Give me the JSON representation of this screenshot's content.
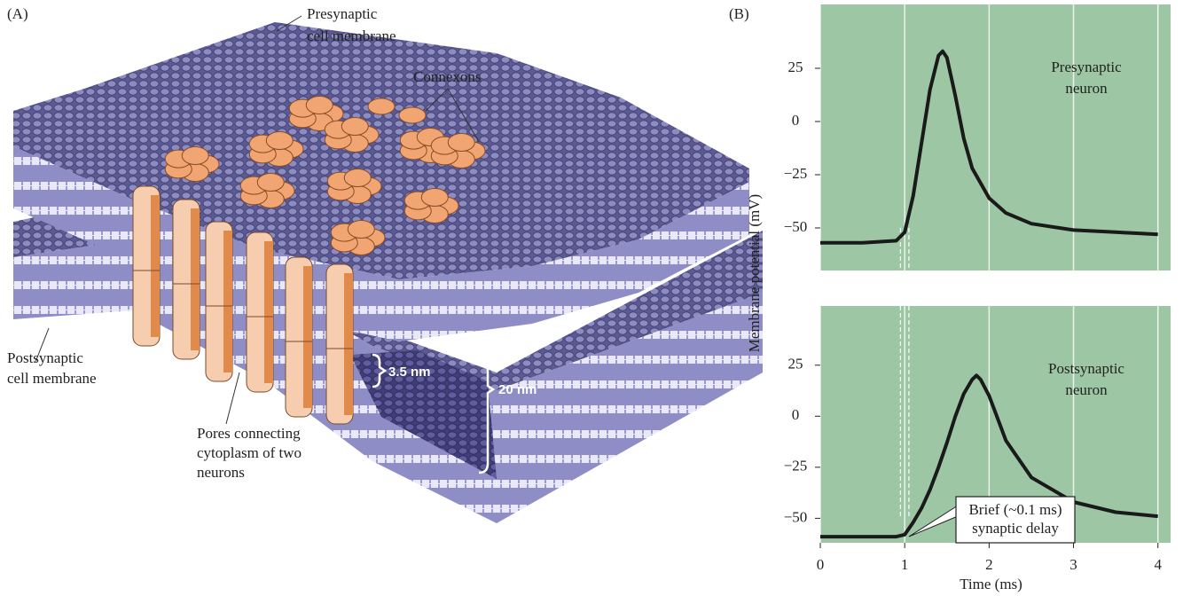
{
  "panel_a": {
    "label": "(A)",
    "presynaptic_label": [
      "Presynaptic",
      "cell membrane"
    ],
    "connexons_label": "Connexons",
    "postsynaptic_label": [
      "Postsynaptic",
      "cell membrane"
    ],
    "pores_label": [
      "Pores connecting",
      "cytoplasm of two",
      "neurons"
    ],
    "gap_label": "3.5 nm",
    "width_label": "20 nm"
  },
  "panel_b": {
    "label": "(B)"
  },
  "chart_data": [
    {
      "type": "line",
      "ylabel": "Membrane potential (mV)",
      "annotation": [
        "Presynaptic",
        "neuron"
      ],
      "x": [
        0,
        0.5,
        0.9,
        1.0,
        1.1,
        1.2,
        1.3,
        1.4,
        1.45,
        1.5,
        1.6,
        1.7,
        1.8,
        2.0,
        2.2,
        2.5,
        3.0,
        3.5,
        4.0
      ],
      "values": [
        -57,
        -57,
        -56,
        -52,
        -35,
        -10,
        15,
        31,
        33,
        30,
        12,
        -8,
        -22,
        -36,
        -43,
        -48,
        -51,
        -52,
        -53
      ],
      "color": "#1a1a1a",
      "background": "#9dc7a4",
      "xlim": [
        0,
        4.15
      ],
      "ylim": [
        -70,
        55
      ],
      "xticks": [
        0,
        1,
        2,
        3,
        4
      ],
      "yticks": [
        {
          "value": -50,
          "label": "−50"
        },
        {
          "value": -25,
          "label": "−25"
        },
        0,
        25
      ],
      "marker_x": [
        0.95,
        1.05
      ],
      "grid": "x"
    },
    {
      "type": "line",
      "xlabel": "Time (ms)",
      "annotation": [
        "Postsynaptic",
        "neuron"
      ],
      "callout": [
        "Brief (~0.1 ms)",
        "synaptic delay"
      ],
      "x": [
        0,
        0.5,
        0.9,
        1.0,
        1.1,
        1.2,
        1.3,
        1.4,
        1.5,
        1.6,
        1.7,
        1.8,
        1.85,
        1.9,
        2.0,
        2.2,
        2.5,
        3.0,
        3.5,
        4.0
      ],
      "values": [
        -59,
        -59,
        -59,
        -58,
        -52,
        -45,
        -36,
        -25,
        -13,
        0,
        11,
        18,
        20,
        18,
        10,
        -12,
        -30,
        -42,
        -47,
        -49
      ],
      "color": "#1a1a1a",
      "background": "#9dc7a4",
      "xlim": [
        0,
        4.15
      ],
      "ylim": [
        -62,
        54
      ],
      "xticks": [
        0,
        1,
        2,
        3,
        4
      ],
      "yticks": [
        {
          "value": -50,
          "label": "−50"
        },
        {
          "value": -25,
          "label": "−25"
        },
        0,
        25
      ],
      "marker_x": [
        0.95,
        1.05
      ],
      "grid": "x"
    }
  ]
}
